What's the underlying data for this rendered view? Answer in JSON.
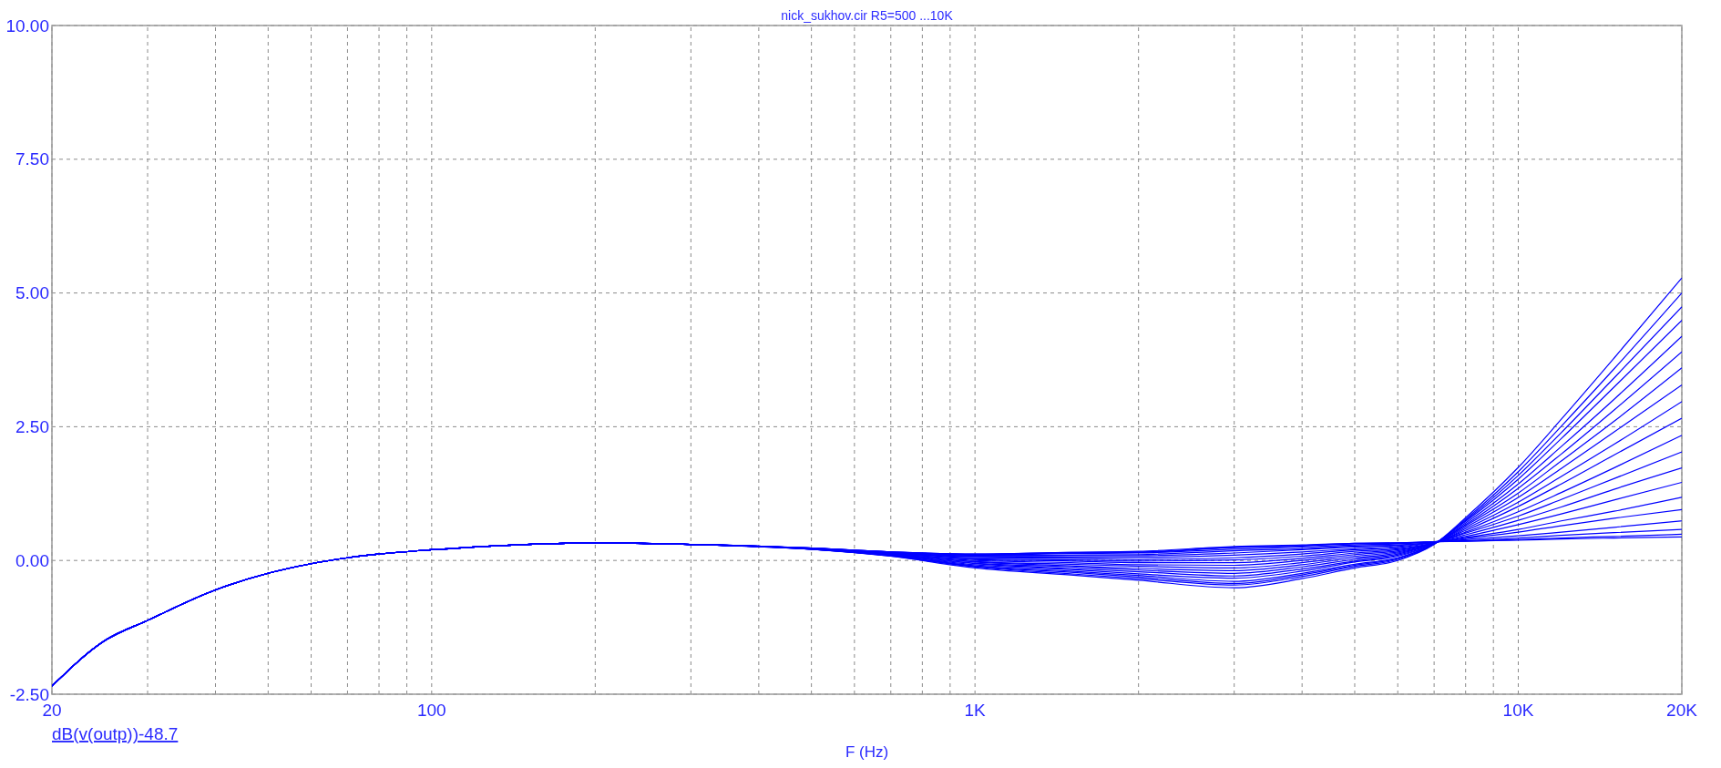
{
  "chart_data": {
    "type": "line",
    "title": "nick_sukhov.cir R5=500 ...10K",
    "xlabel": "F (Hz)",
    "annotations": [
      "dB(v(outp))-48.7"
    ],
    "log": "x",
    "grid": true,
    "marker": "none",
    "line_style": "solid",
    "xlim": [
      20,
      20000
    ],
    "ylim": [
      -2.5,
      10
    ],
    "xticks": [
      20,
      {
        "value": 30,
        "label": null
      },
      {
        "value": 40,
        "label": null
      },
      {
        "value": 50,
        "label": null
      },
      {
        "value": 60,
        "label": null
      },
      {
        "value": 70,
        "label": null
      },
      {
        "value": 80,
        "label": null
      },
      {
        "value": 90,
        "label": null
      },
      100,
      {
        "value": 200,
        "label": null
      },
      {
        "value": 300,
        "label": null
      },
      {
        "value": 400,
        "label": null
      },
      {
        "value": 500,
        "label": null
      },
      {
        "value": 600,
        "label": null
      },
      {
        "value": 700,
        "label": null
      },
      {
        "value": 800,
        "label": null
      },
      {
        "value": 900,
        "label": null
      },
      {
        "value": 1000,
        "label": "1K"
      },
      {
        "value": 2000,
        "label": null
      },
      {
        "value": 3000,
        "label": null
      },
      {
        "value": 4000,
        "label": null
      },
      {
        "value": 5000,
        "label": null
      },
      {
        "value": 6000,
        "label": null
      },
      {
        "value": 7000,
        "label": null
      },
      {
        "value": 8000,
        "label": null
      },
      {
        "value": 9000,
        "label": null
      },
      {
        "value": 10000,
        "label": "10K"
      },
      {
        "value": 20000,
        "label": "20K"
      }
    ],
    "yticks": [
      {
        "value": -2.5,
        "label": "-2.50"
      },
      {
        "value": 0,
        "label": "0.00"
      },
      {
        "value": 2.5,
        "label": "2.50"
      },
      {
        "value": 5,
        "label": "5.00"
      },
      {
        "value": 7.5,
        "label": "7.50"
      },
      {
        "value": 10,
        "label": "10.00"
      }
    ],
    "x": [
      20,
      25,
      30,
      40,
      50,
      60,
      70,
      80,
      100,
      150,
      200,
      300,
      500,
      700,
      1000,
      1500,
      2000,
      3000,
      4000,
      5000,
      6000,
      7000,
      8000,
      10000,
      12000,
      15000,
      20000
    ],
    "series": [
      {
        "color": "#0000ff",
        "values": [
          -2.35,
          -1.5,
          -1.12,
          -0.55,
          -0.24,
          -0.06,
          0.05,
          0.12,
          0.2,
          0.3,
          0.33,
          0.3,
          0.21,
          0.08,
          -0.14,
          -0.27,
          -0.37,
          -0.51,
          -0.34,
          -0.14,
          0.0,
          0.3,
          0.8,
          1.74,
          2.64,
          3.78,
          5.28
        ]
      },
      {
        "color": "#0000ff",
        "values": [
          -2.35,
          -1.5,
          -1.12,
          -0.55,
          -0.24,
          -0.06,
          0.05,
          0.12,
          0.2,
          0.3,
          0.33,
          0.3,
          0.21,
          0.08,
          -0.12,
          -0.25,
          -0.34,
          -0.46,
          -0.3,
          -0.11,
          0.02,
          0.3,
          0.77,
          1.66,
          2.51,
          3.58,
          5.0
        ]
      },
      {
        "color": "#0000ff",
        "values": [
          -2.35,
          -1.5,
          -1.12,
          -0.55,
          -0.24,
          -0.06,
          0.05,
          0.12,
          0.2,
          0.3,
          0.33,
          0.3,
          0.21,
          0.09,
          -0.11,
          -0.22,
          -0.31,
          -0.43,
          -0.27,
          -0.09,
          0.04,
          0.31,
          0.75,
          1.59,
          2.39,
          3.41,
          4.74
        ]
      },
      {
        "color": "#0000ff",
        "values": [
          -2.35,
          -1.5,
          -1.12,
          -0.55,
          -0.24,
          -0.06,
          0.05,
          0.12,
          0.2,
          0.3,
          0.33,
          0.3,
          0.21,
          0.09,
          -0.1,
          -0.2,
          -0.28,
          -0.39,
          -0.24,
          -0.07,
          0.05,
          0.31,
          0.73,
          1.52,
          2.28,
          3.24,
          4.49
        ]
      },
      {
        "color": "#0000ff",
        "values": [
          -2.35,
          -1.5,
          -1.12,
          -0.55,
          -0.24,
          -0.06,
          0.05,
          0.12,
          0.2,
          0.3,
          0.33,
          0.3,
          0.21,
          0.1,
          -0.08,
          -0.17,
          -0.25,
          -0.33,
          -0.2,
          -0.03,
          0.08,
          0.31,
          0.7,
          1.43,
          2.13,
          3.01,
          4.19
        ]
      },
      {
        "color": "#0000ff",
        "values": [
          -2.35,
          -1.5,
          -1.12,
          -0.55,
          -0.24,
          -0.06,
          0.05,
          0.12,
          0.2,
          0.3,
          0.33,
          0.3,
          0.22,
          0.1,
          -0.06,
          -0.15,
          -0.21,
          -0.29,
          -0.16,
          -0.01,
          0.1,
          0.31,
          0.67,
          1.35,
          1.99,
          2.81,
          3.9
        ]
      },
      {
        "color": "#0000ff",
        "values": [
          -2.35,
          -1.5,
          -1.12,
          -0.55,
          -0.24,
          -0.06,
          0.05,
          0.12,
          0.2,
          0.3,
          0.33,
          0.3,
          0.22,
          0.11,
          -0.05,
          -0.12,
          -0.18,
          -0.24,
          -0.12,
          0.02,
          0.12,
          0.32,
          0.65,
          1.26,
          1.86,
          2.6,
          3.6
        ]
      },
      {
        "color": "#0000ff",
        "values": [
          -2.35,
          -1.5,
          -1.12,
          -0.55,
          -0.24,
          -0.06,
          0.05,
          0.12,
          0.2,
          0.3,
          0.33,
          0.3,
          0.22,
          0.11,
          -0.03,
          -0.1,
          -0.15,
          -0.19,
          -0.08,
          0.05,
          0.14,
          0.32,
          0.62,
          1.18,
          1.72,
          2.4,
          3.28
        ]
      },
      {
        "color": "#0000ff",
        "values": [
          -2.35,
          -1.5,
          -1.12,
          -0.55,
          -0.24,
          -0.06,
          0.05,
          0.12,
          0.2,
          0.3,
          0.33,
          0.3,
          0.22,
          0.12,
          -0.02,
          -0.07,
          -0.11,
          -0.14,
          -0.04,
          0.08,
          0.16,
          0.32,
          0.59,
          1.09,
          1.57,
          2.17,
          2.97
        ]
      },
      {
        "color": "#0000ff",
        "values": [
          -2.35,
          -1.5,
          -1.12,
          -0.55,
          -0.24,
          -0.06,
          0.05,
          0.12,
          0.2,
          0.3,
          0.33,
          0.3,
          0.22,
          0.12,
          0.0,
          -0.04,
          -0.08,
          -0.09,
          0.0,
          0.11,
          0.18,
          0.33,
          0.56,
          1.01,
          1.43,
          1.97,
          2.66
        ]
      },
      {
        "color": "#0000ff",
        "values": [
          -2.35,
          -1.5,
          -1.12,
          -0.55,
          -0.24,
          -0.06,
          0.05,
          0.12,
          0.2,
          0.3,
          0.33,
          0.3,
          0.22,
          0.13,
          0.02,
          -0.01,
          -0.04,
          -0.04,
          0.04,
          0.14,
          0.2,
          0.33,
          0.53,
          0.91,
          1.27,
          1.73,
          2.34
        ]
      },
      {
        "color": "#0000ff",
        "values": [
          -2.35,
          -1.5,
          -1.12,
          -0.55,
          -0.24,
          -0.06,
          0.05,
          0.12,
          0.2,
          0.3,
          0.33,
          0.3,
          0.22,
          0.13,
          0.03,
          0.01,
          -0.01,
          0.01,
          0.08,
          0.17,
          0.22,
          0.33,
          0.51,
          0.83,
          1.14,
          1.53,
          2.03
        ]
      },
      {
        "color": "#0000ff",
        "values": [
          -2.35,
          -1.5,
          -1.12,
          -0.55,
          -0.24,
          -0.06,
          0.05,
          0.12,
          0.2,
          0.3,
          0.33,
          0.3,
          0.22,
          0.14,
          0.05,
          0.04,
          0.02,
          0.05,
          0.12,
          0.2,
          0.24,
          0.34,
          0.48,
          0.75,
          1.0,
          1.33,
          1.73
        ]
      },
      {
        "color": "#0000ff",
        "values": [
          -2.35,
          -1.5,
          -1.12,
          -0.55,
          -0.24,
          -0.06,
          0.05,
          0.12,
          0.2,
          0.3,
          0.33,
          0.3,
          0.23,
          0.14,
          0.07,
          0.06,
          0.06,
          0.1,
          0.16,
          0.22,
          0.26,
          0.34,
          0.45,
          0.67,
          0.87,
          1.13,
          1.46
        ]
      },
      {
        "color": "#0000ff",
        "values": [
          -2.35,
          -1.5,
          -1.12,
          -0.55,
          -0.24,
          -0.06,
          0.05,
          0.12,
          0.2,
          0.3,
          0.33,
          0.3,
          0.23,
          0.15,
          0.08,
          0.09,
          0.09,
          0.14,
          0.2,
          0.25,
          0.28,
          0.34,
          0.43,
          0.58,
          0.74,
          0.92,
          1.18
        ]
      },
      {
        "color": "#0000ff",
        "values": [
          -2.35,
          -1.5,
          -1.12,
          -0.55,
          -0.24,
          -0.06,
          0.05,
          0.12,
          0.2,
          0.3,
          0.33,
          0.3,
          0.23,
          0.15,
          0.09,
          0.1,
          0.11,
          0.18,
          0.22,
          0.27,
          0.29,
          0.34,
          0.41,
          0.53,
          0.65,
          0.79,
          0.95
        ]
      },
      {
        "color": "#0000ff",
        "values": [
          -2.35,
          -1.5,
          -1.12,
          -0.55,
          -0.24,
          -0.06,
          0.05,
          0.12,
          0.2,
          0.3,
          0.33,
          0.3,
          0.23,
          0.16,
          0.1,
          0.13,
          0.14,
          0.21,
          0.25,
          0.29,
          0.31,
          0.35,
          0.39,
          0.46,
          0.53,
          0.62,
          0.74
        ]
      },
      {
        "color": "#0000ff",
        "values": [
          -2.35,
          -1.5,
          -1.12,
          -0.55,
          -0.24,
          -0.06,
          0.05,
          0.12,
          0.2,
          0.3,
          0.33,
          0.3,
          0.23,
          0.16,
          0.11,
          0.14,
          0.15,
          0.24,
          0.27,
          0.31,
          0.32,
          0.35,
          0.37,
          0.42,
          0.47,
          0.52,
          0.58
        ]
      },
      {
        "color": "#0000ff",
        "values": [
          -2.35,
          -1.5,
          -1.12,
          -0.55,
          -0.24,
          -0.06,
          0.05,
          0.12,
          0.2,
          0.3,
          0.33,
          0.3,
          0.23,
          0.16,
          0.12,
          0.15,
          0.16,
          0.25,
          0.28,
          0.32,
          0.33,
          0.35,
          0.36,
          0.39,
          0.42,
          0.45,
          0.49
        ]
      },
      {
        "color": "#0000ff",
        "values": [
          -2.35,
          -1.5,
          -1.12,
          -0.55,
          -0.24,
          -0.06,
          0.05,
          0.12,
          0.2,
          0.3,
          0.33,
          0.3,
          0.23,
          0.16,
          0.12,
          0.15,
          0.17,
          0.26,
          0.29,
          0.32,
          0.33,
          0.35,
          0.36,
          0.38,
          0.4,
          0.42,
          0.44
        ]
      }
    ]
  }
}
